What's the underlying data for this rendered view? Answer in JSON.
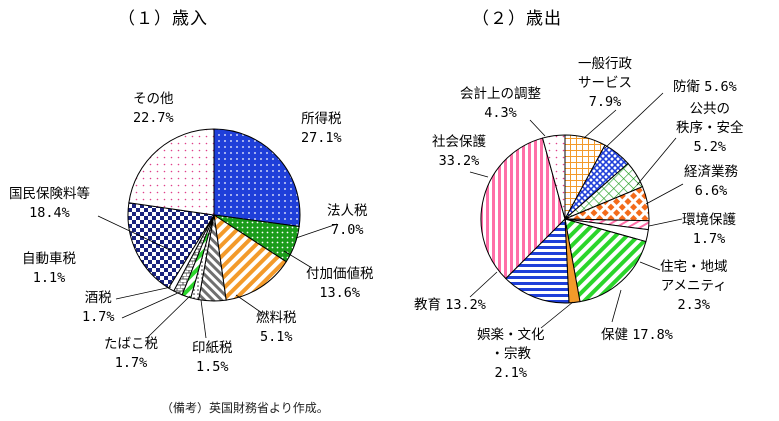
{
  "titles": {
    "revenue": "（１）歳入",
    "expenditure": "（２）歳出"
  },
  "note": "（備考）英国財務省より作成。",
  "colors": {
    "blue": "#1f3fd9",
    "green": "#1a9c1a",
    "orange": "#f39a2a",
    "grey": "#707070",
    "pink": "#ff6fa8",
    "navy": "#1a237e"
  },
  "chart_data": [
    {
      "type": "pie",
      "title": "（１）歳入",
      "slices": [
        {
          "name": "所得税",
          "value": 27.1,
          "label": "27.1%",
          "pattern": "dots-blue"
        },
        {
          "name": "法人税",
          "value": 7.0,
          "label": "7.0%",
          "pattern": "dots-green"
        },
        {
          "name": "付加価値税",
          "value": 13.6,
          "label": "13.6%",
          "pattern": "stripes-orange"
        },
        {
          "name": "燃料税",
          "value": 5.1,
          "label": "5.1%",
          "pattern": "stripes-grey"
        },
        {
          "name": "印紙税",
          "value": 1.5,
          "label": "1.5%",
          "pattern": "dots-small"
        },
        {
          "name": "たばこ税",
          "value": 1.7,
          "label": "1.7%",
          "pattern": "stripes-green"
        },
        {
          "name": "酒税",
          "value": 1.7,
          "label": "1.7%",
          "pattern": "bricks-grey"
        },
        {
          "name": "自動車税",
          "value": 1.1,
          "label": "1.1%",
          "pattern": "white"
        },
        {
          "name": "国民保険料等",
          "value": 18.4,
          "label": "18.4%",
          "pattern": "checker-navy"
        },
        {
          "name": "その他",
          "value": 22.7,
          "label": "22.7%",
          "pattern": "dots-pink"
        }
      ]
    },
    {
      "type": "pie",
      "title": "（２）歳出",
      "slices": [
        {
          "name": "一般行政サービス",
          "value": 7.9,
          "label": "7.9%",
          "pattern": "grid-orange"
        },
        {
          "name": "防衛",
          "value": 5.6,
          "label": "5.6%",
          "pattern": "xhatch-blue"
        },
        {
          "name": "公共の秩序・安全",
          "value": 5.2,
          "label": "5.2%",
          "pattern": "grid-green"
        },
        {
          "name": "経済業務",
          "value": 6.6,
          "label": "6.6%",
          "pattern": "diamond-orange"
        },
        {
          "name": "環境保護",
          "value": 1.7,
          "label": "1.7%",
          "pattern": "stripes-pink"
        },
        {
          "name": "住宅・地域アメニティ",
          "value": 2.3,
          "label": "2.3%",
          "pattern": "white"
        },
        {
          "name": "保健",
          "value": 17.8,
          "label": "17.8%",
          "pattern": "stripes-green"
        },
        {
          "name": "娯楽・文化・宗教",
          "value": 2.1,
          "label": "2.1%",
          "pattern": "solid-orange"
        },
        {
          "name": "教育",
          "value": 13.2,
          "label": "13.2%",
          "pattern": "hlines-blue"
        },
        {
          "name": "社会保護",
          "value": 33.2,
          "label": "33.2%",
          "pattern": "vstripes-pink"
        },
        {
          "name": "会計上の調整",
          "value": 4.3,
          "label": "4.3%",
          "pattern": "dots-pink"
        }
      ]
    }
  ],
  "labels": {
    "rev": [
      {
        "n": "所得税",
        "v": "27.1%"
      },
      {
        "n": "法人税",
        "v": "7.0%"
      },
      {
        "n": "付加価値税",
        "v": "13.6%"
      },
      {
        "n": "燃料税",
        "v": "5.1%"
      },
      {
        "n": "印紙税",
        "v": "1.5%"
      },
      {
        "n": "たばこ税",
        "v": "1.7%"
      },
      {
        "n": "酒税",
        "v": "1.7%"
      },
      {
        "n": "自動車税",
        "v": "1.1%"
      },
      {
        "n": "国民保険料等",
        "v": "18.4%"
      },
      {
        "n": "その他",
        "v": "22.7%"
      }
    ],
    "exp": [
      {
        "n1": "一般行政",
        "n2": "サービス",
        "v": "7.9%"
      },
      {
        "n": "防衛",
        "v": "5.6%"
      },
      {
        "n1": "公共の",
        "n2": "秩序・安全",
        "v": "5.2%"
      },
      {
        "n": "経済業務",
        "v": "6.6%"
      },
      {
        "n": "環境保護",
        "v": "1.7%"
      },
      {
        "n1": "住宅・地域",
        "n2": "アメニティ",
        "v": "2.3%"
      },
      {
        "n": "保健",
        "v": "17.8%"
      },
      {
        "n1": "娯楽・文化",
        "n2": "・宗教",
        "v": "2.1%"
      },
      {
        "n": "教育",
        "v": "13.2%"
      },
      {
        "n": "社会保護",
        "v": "33.2%"
      },
      {
        "n": "会計上の調整",
        "v": "4.3%"
      }
    ]
  }
}
